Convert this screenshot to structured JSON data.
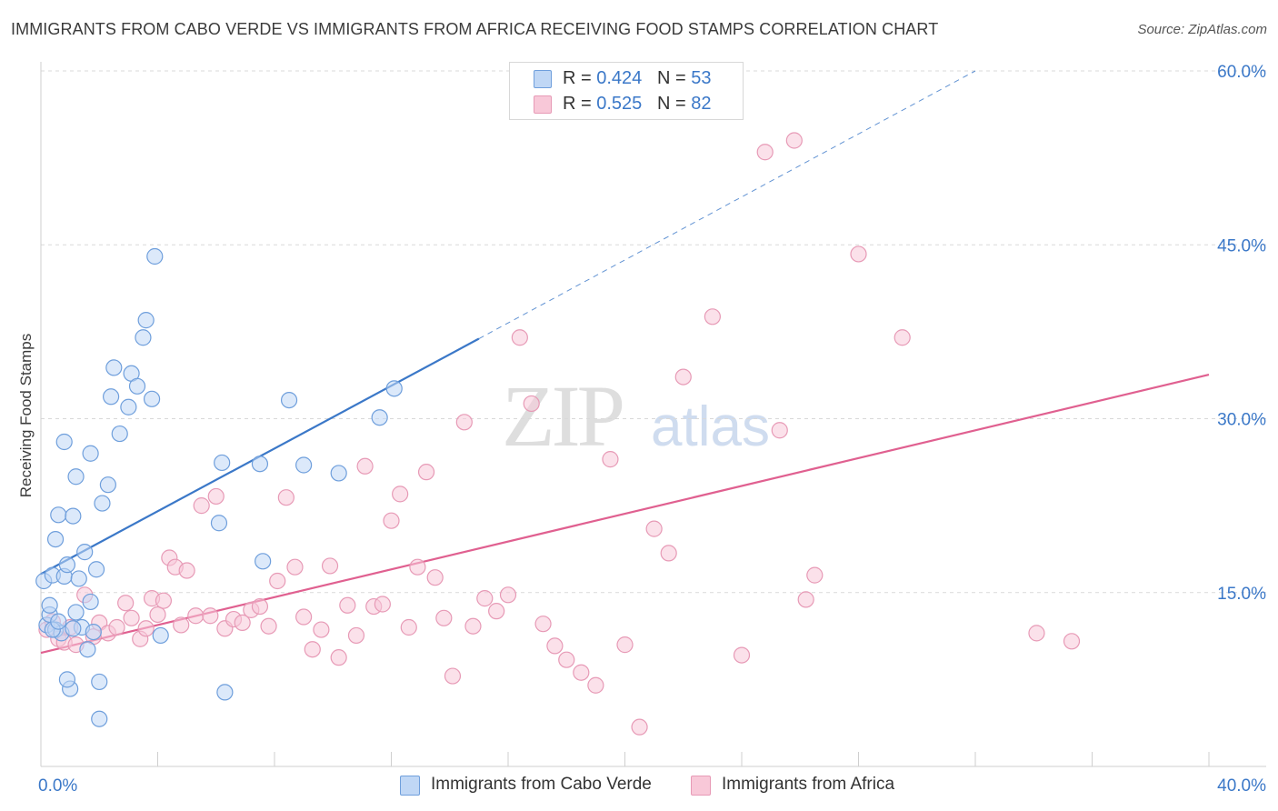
{
  "title": "IMMIGRANTS FROM CABO VERDE VS IMMIGRANTS FROM AFRICA RECEIVING FOOD STAMPS CORRELATION CHART",
  "source": "Source: ZipAtlas.com",
  "watermark": {
    "zip": "ZIP",
    "atlas": "atlas"
  },
  "legend": {
    "r_label": "R = ",
    "n_label": "N = ",
    "entries": [
      {
        "r": "0.424",
        "n": "53",
        "fill": "#c0d7f5",
        "stroke": "#6f9fdc"
      },
      {
        "r": "0.525",
        "n": "82",
        "fill": "#f8c8d8",
        "stroke": "#e79ab6"
      }
    ]
  },
  "chart_data": {
    "type": "scatter",
    "title": "IMMIGRANTS FROM CABO VERDE VS IMMIGRANTS FROM AFRICA RECEIVING FOOD STAMPS CORRELATION CHART",
    "xlabel": "",
    "ylabel": "Receiving Food Stamps",
    "xlim": [
      0,
      40
    ],
    "ylim": [
      0,
      60
    ],
    "x_tick_labels": [
      "0.0%",
      "40.0%"
    ],
    "y_ticks": [
      15,
      30,
      45,
      60
    ],
    "y_tick_labels": [
      "15.0%",
      "30.0%",
      "45.0%",
      "60.0%"
    ],
    "grid": true,
    "legend_position": "top-center",
    "series": [
      {
        "name": "Immigrants from Cabo Verde",
        "color": "#3b78c8",
        "marker_fill": "#c0d7f5",
        "marker_stroke": "#6f9fdc",
        "trend": {
          "x": [
            0,
            15
          ],
          "y": [
            16.6,
            36.9
          ]
        },
        "trend_extension": {
          "x": [
            15,
            32
          ],
          "y": [
            36.9,
            60
          ]
        },
        "x": [
          0.1,
          0.2,
          0.3,
          0.4,
          0.5,
          0.5,
          0.6,
          0.7,
          0.8,
          0.9,
          1.0,
          1.1,
          1.2,
          1.3,
          1.4,
          1.5,
          1.6,
          1.7,
          1.8,
          1.9,
          2.0,
          2.1,
          2.3,
          2.4,
          2.5,
          2.7,
          3.0,
          3.1,
          3.3,
          3.5,
          3.6,
          3.8,
          3.9,
          4.1,
          6.1,
          6.2,
          6.3,
          7.5,
          7.6,
          8.5,
          9.0,
          10.2,
          11.6,
          12.1,
          0.4,
          0.6,
          0.8,
          1.2,
          1.7,
          2.0,
          0.3,
          0.9,
          1.1
        ],
        "y": [
          16.0,
          12.2,
          13.1,
          16.5,
          19.6,
          11.8,
          21.7,
          11.5,
          16.4,
          17.4,
          6.7,
          21.6,
          25.0,
          16.2,
          12.0,
          18.5,
          10.1,
          27.0,
          11.6,
          17.0,
          4.1,
          22.7,
          24.3,
          31.9,
          34.4,
          28.7,
          31.0,
          33.9,
          32.8,
          37.0,
          38.5,
          31.7,
          44.0,
          11.3,
          21.0,
          26.2,
          6.4,
          26.1,
          17.7,
          31.6,
          26.0,
          25.3,
          30.1,
          32.6,
          11.8,
          12.5,
          28.0,
          13.3,
          14.2,
          7.3,
          13.9,
          7.5,
          11.9
        ]
      },
      {
        "name": "Immigrants from Africa",
        "color": "#e06090",
        "marker_fill": "#f8c8d8",
        "marker_stroke": "#e79ab6",
        "trend": {
          "x": [
            0,
            40
          ],
          "y": [
            9.8,
            33.8
          ]
        },
        "x": [
          0.2,
          0.4,
          0.6,
          0.8,
          1.0,
          1.2,
          1.5,
          1.8,
          2.0,
          2.3,
          2.6,
          2.9,
          3.1,
          3.4,
          3.6,
          3.8,
          4.0,
          4.2,
          4.4,
          4.6,
          4.8,
          5.0,
          5.3,
          5.5,
          5.8,
          6.0,
          6.3,
          6.6,
          6.9,
          7.2,
          7.5,
          7.8,
          8.1,
          8.4,
          8.7,
          9.0,
          9.3,
          9.6,
          9.9,
          10.2,
          10.5,
          10.8,
          11.1,
          11.4,
          11.7,
          12.0,
          12.3,
          12.6,
          12.9,
          13.2,
          13.5,
          13.8,
          14.1,
          14.5,
          14.8,
          15.2,
          15.6,
          16.0,
          16.4,
          16.8,
          17.2,
          17.6,
          18.0,
          18.5,
          19.0,
          19.5,
          20.0,
          20.5,
          21.0,
          21.5,
          22.0,
          23.0,
          24.0,
          24.8,
          25.3,
          25.8,
          26.2,
          26.5,
          28.0,
          29.5,
          34.1,
          35.3
        ],
        "y": [
          11.8,
          12.5,
          11.0,
          10.7,
          12.0,
          10.5,
          14.8,
          11.2,
          12.4,
          11.5,
          12.0,
          14.1,
          12.8,
          11.0,
          11.9,
          14.5,
          13.1,
          14.3,
          18.0,
          17.2,
          12.2,
          16.9,
          13.0,
          22.5,
          13.0,
          23.3,
          11.9,
          12.7,
          12.4,
          13.5,
          13.8,
          12.1,
          16.0,
          23.2,
          17.2,
          12.9,
          10.1,
          11.8,
          17.3,
          9.4,
          13.9,
          11.3,
          25.9,
          13.8,
          14.0,
          21.2,
          23.5,
          12.0,
          17.2,
          25.4,
          16.3,
          12.8,
          7.8,
          29.7,
          12.1,
          14.5,
          13.4,
          14.8,
          37.0,
          31.3,
          12.3,
          10.4,
          9.2,
          8.1,
          7.0,
          26.5,
          10.5,
          3.4,
          20.5,
          18.4,
          33.6,
          38.8,
          9.6,
          53.0,
          29.0,
          54.0,
          14.4,
          16.5,
          44.2,
          37.0,
          11.5,
          10.8
        ]
      }
    ]
  }
}
